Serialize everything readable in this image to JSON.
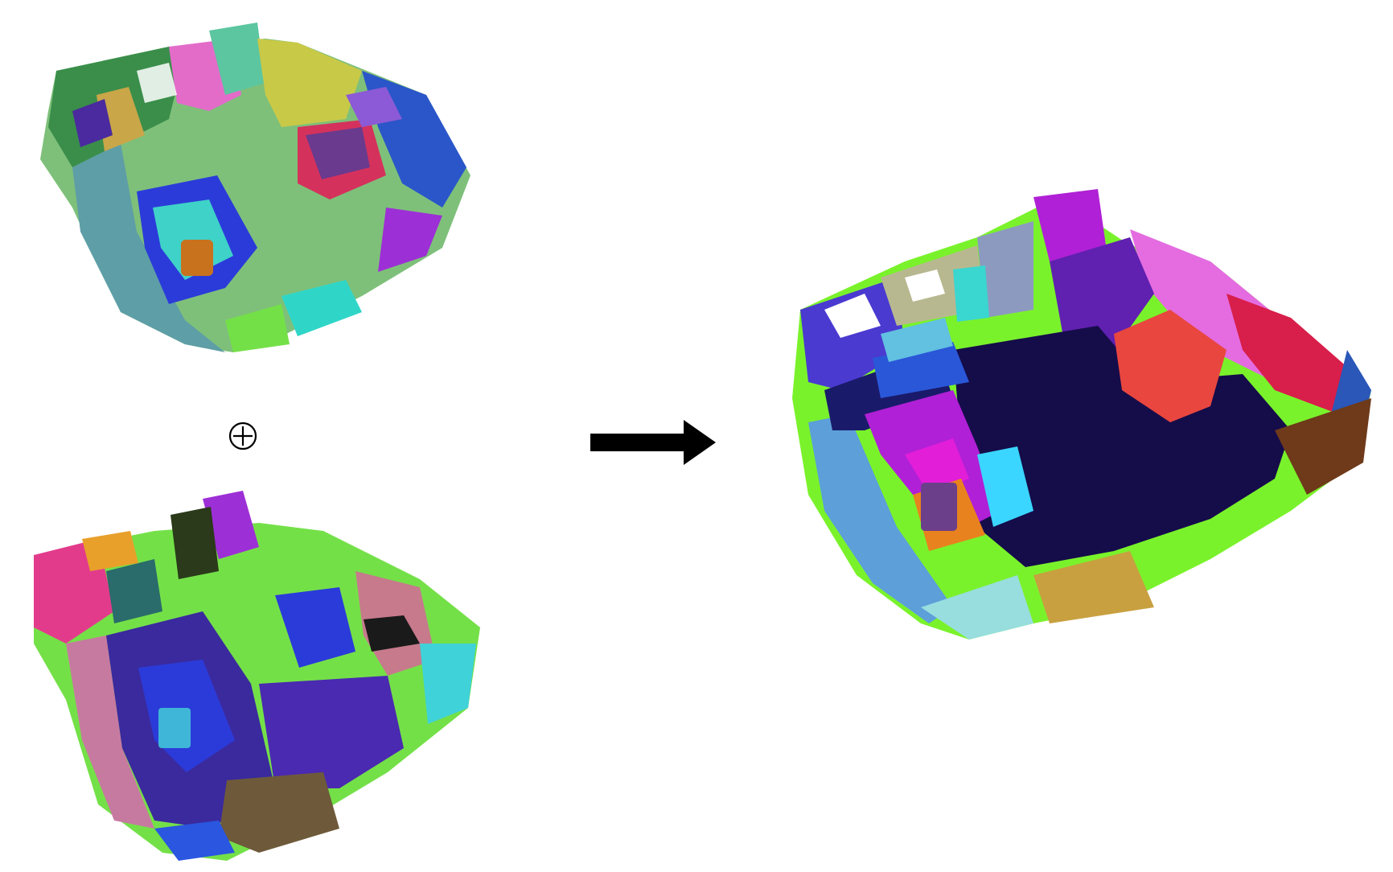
{
  "figure": {
    "operator_symbol": "⊕",
    "arrow_direction": "right"
  },
  "panels": [
    {
      "id": "scene-a",
      "role": "input point cloud segmentation (top)",
      "palette": [
        "#7ec07a",
        "#5e9ea6",
        "#3a8e4a",
        "#e36cc9",
        "#6fcf55",
        "#2a56c9",
        "#c9a648",
        "#4a2a9e",
        "#d4325c",
        "#2fd6c8"
      ]
    },
    {
      "id": "scene-b",
      "role": "input point cloud segmentation (bottom)",
      "palette": [
        "#3a2a9e",
        "#74e048",
        "#2b3bd9",
        "#c77aa0",
        "#6e5a3a",
        "#9d2fd6",
        "#3fd2d8",
        "#2a6b6b",
        "#e33b8c",
        "#4ad16a"
      ]
    },
    {
      "id": "scene-merged",
      "role": "merged segmentation result",
      "palette": [
        "#150c4a",
        "#5c9fd9",
        "#7af22b",
        "#e8463f",
        "#b020d6",
        "#d81e4a",
        "#3ad6d0",
        "#2a57b8",
        "#e46ce0",
        "#6b3f8a"
      ]
    }
  ],
  "colors": {
    "background": "#ffffff",
    "arrow": "#000000",
    "operator": "#000000"
  }
}
